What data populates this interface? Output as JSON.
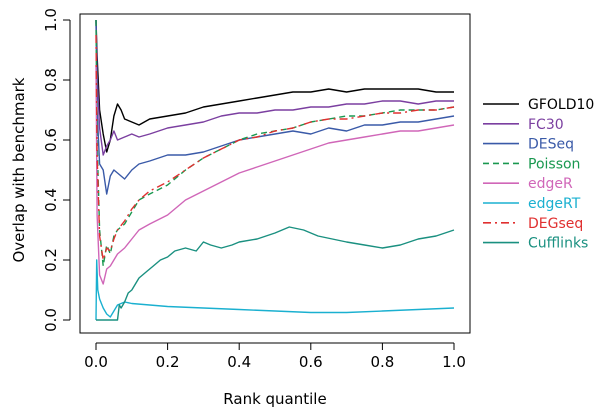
{
  "chart_data": {
    "type": "line",
    "title": "",
    "xlabel": "Rank quantile",
    "ylabel": "Overlap with benchmark",
    "xlim": [
      0,
      1
    ],
    "ylim": [
      0,
      1
    ],
    "x_ticks": [
      0.0,
      0.2,
      0.4,
      0.6,
      0.8,
      1.0
    ],
    "x_tick_labels": [
      "0.0",
      "0.2",
      "0.4",
      "0.6",
      "0.8",
      "1.0"
    ],
    "y_ticks": [
      0.0,
      0.2,
      0.4,
      0.6,
      0.8,
      1.0
    ],
    "y_tick_labels": [
      "0.0",
      "0.2",
      "0.4",
      "0.6",
      "0.8",
      "1.0"
    ],
    "grid": false,
    "legend_position": "right",
    "series": [
      {
        "name": "GFOLD10",
        "color": "#000000",
        "dash": "solid",
        "x": [
          0,
          0.003,
          0.01,
          0.02,
          0.03,
          0.04,
          0.05,
          0.06,
          0.07,
          0.08,
          0.1,
          0.12,
          0.15,
          0.2,
          0.25,
          0.3,
          0.35,
          0.4,
          0.45,
          0.5,
          0.55,
          0.6,
          0.65,
          0.7,
          0.75,
          0.8,
          0.85,
          0.9,
          0.95,
          1.0
        ],
        "y": [
          1.0,
          0.88,
          0.7,
          0.62,
          0.56,
          0.6,
          0.68,
          0.72,
          0.7,
          0.67,
          0.66,
          0.65,
          0.67,
          0.68,
          0.69,
          0.71,
          0.72,
          0.73,
          0.74,
          0.75,
          0.76,
          0.76,
          0.77,
          0.76,
          0.77,
          0.77,
          0.77,
          0.77,
          0.76,
          0.76
        ]
      },
      {
        "name": "FC30",
        "color": "#7b3fa0",
        "dash": "solid",
        "x": [
          0,
          0.003,
          0.01,
          0.02,
          0.03,
          0.04,
          0.05,
          0.06,
          0.08,
          0.1,
          0.12,
          0.15,
          0.2,
          0.25,
          0.3,
          0.35,
          0.4,
          0.45,
          0.5,
          0.55,
          0.6,
          0.65,
          0.7,
          0.75,
          0.8,
          0.85,
          0.9,
          0.95,
          1.0
        ],
        "y": [
          1.0,
          0.82,
          0.64,
          0.55,
          0.58,
          0.6,
          0.63,
          0.6,
          0.61,
          0.62,
          0.61,
          0.62,
          0.64,
          0.65,
          0.66,
          0.68,
          0.69,
          0.69,
          0.7,
          0.7,
          0.71,
          0.71,
          0.72,
          0.72,
          0.73,
          0.73,
          0.72,
          0.73,
          0.73
        ]
      },
      {
        "name": "DESeq",
        "color": "#3a5aa8",
        "dash": "solid",
        "x": [
          0,
          0.003,
          0.01,
          0.02,
          0.03,
          0.04,
          0.05,
          0.06,
          0.08,
          0.1,
          0.12,
          0.15,
          0.2,
          0.25,
          0.3,
          0.35,
          0.4,
          0.45,
          0.5,
          0.55,
          0.6,
          0.65,
          0.7,
          0.75,
          0.8,
          0.85,
          0.9,
          0.95,
          1.0
        ],
        "y": [
          1.0,
          0.7,
          0.52,
          0.5,
          0.42,
          0.48,
          0.5,
          0.49,
          0.47,
          0.5,
          0.52,
          0.53,
          0.55,
          0.55,
          0.56,
          0.58,
          0.6,
          0.61,
          0.62,
          0.63,
          0.62,
          0.64,
          0.63,
          0.65,
          0.65,
          0.66,
          0.66,
          0.67,
          0.68
        ]
      },
      {
        "name": "Poisson",
        "color": "#1a9850",
        "dash": "dash",
        "x": [
          0,
          0.003,
          0.01,
          0.02,
          0.03,
          0.04,
          0.05,
          0.06,
          0.08,
          0.1,
          0.12,
          0.15,
          0.2,
          0.25,
          0.3,
          0.35,
          0.4,
          0.45,
          0.5,
          0.55,
          0.6,
          0.65,
          0.7,
          0.75,
          0.8,
          0.85,
          0.9,
          0.95,
          1.0
        ],
        "y": [
          1.0,
          0.6,
          0.3,
          0.18,
          0.25,
          0.22,
          0.28,
          0.3,
          0.32,
          0.36,
          0.4,
          0.42,
          0.45,
          0.5,
          0.54,
          0.57,
          0.6,
          0.62,
          0.63,
          0.64,
          0.66,
          0.67,
          0.68,
          0.68,
          0.69,
          0.7,
          0.7,
          0.7,
          0.71
        ]
      },
      {
        "name": "edgeR",
        "color": "#d066b8",
        "dash": "solid",
        "x": [
          0,
          0.003,
          0.01,
          0.02,
          0.03,
          0.04,
          0.05,
          0.06,
          0.08,
          0.1,
          0.12,
          0.15,
          0.2,
          0.25,
          0.3,
          0.35,
          0.4,
          0.45,
          0.5,
          0.55,
          0.6,
          0.65,
          0.7,
          0.75,
          0.8,
          0.85,
          0.9,
          0.95,
          1.0
        ],
        "y": [
          0.85,
          0.35,
          0.15,
          0.12,
          0.17,
          0.18,
          0.2,
          0.22,
          0.24,
          0.27,
          0.3,
          0.32,
          0.35,
          0.4,
          0.43,
          0.46,
          0.49,
          0.51,
          0.53,
          0.55,
          0.57,
          0.59,
          0.6,
          0.61,
          0.62,
          0.63,
          0.63,
          0.64,
          0.65
        ]
      },
      {
        "name": "edgeRT",
        "color": "#1ab0d0",
        "dash": "solid",
        "x": [
          0,
          0.002,
          0.005,
          0.01,
          0.02,
          0.03,
          0.04,
          0.05,
          0.06,
          0.08,
          0.1,
          0.15,
          0.2,
          0.3,
          0.4,
          0.5,
          0.6,
          0.7,
          0.8,
          0.9,
          1.0
        ],
        "y": [
          0.0,
          0.2,
          0.1,
          0.07,
          0.04,
          0.02,
          0.01,
          0.03,
          0.05,
          0.06,
          0.055,
          0.05,
          0.045,
          0.04,
          0.035,
          0.03,
          0.025,
          0.025,
          0.03,
          0.035,
          0.04
        ]
      },
      {
        "name": "DEGseq",
        "color": "#e03030",
        "dash": "dashdot",
        "x": [
          0,
          0.003,
          0.01,
          0.02,
          0.03,
          0.04,
          0.05,
          0.06,
          0.08,
          0.1,
          0.12,
          0.15,
          0.2,
          0.25,
          0.3,
          0.35,
          0.4,
          0.45,
          0.5,
          0.55,
          0.6,
          0.65,
          0.7,
          0.75,
          0.8,
          0.85,
          0.9,
          0.95,
          1.0
        ],
        "y": [
          0.95,
          0.55,
          0.28,
          0.2,
          0.24,
          0.23,
          0.27,
          0.3,
          0.33,
          0.37,
          0.4,
          0.43,
          0.46,
          0.5,
          0.54,
          0.57,
          0.6,
          0.61,
          0.63,
          0.64,
          0.66,
          0.67,
          0.67,
          0.68,
          0.69,
          0.69,
          0.7,
          0.7,
          0.71
        ]
      },
      {
        "name": "Cufflinks",
        "color": "#1a9080",
        "dash": "solid",
        "x": [
          0,
          0.06,
          0.065,
          0.07,
          0.08,
          0.09,
          0.1,
          0.12,
          0.14,
          0.16,
          0.18,
          0.2,
          0.22,
          0.25,
          0.28,
          0.3,
          0.32,
          0.35,
          0.38,
          0.4,
          0.45,
          0.5,
          0.54,
          0.58,
          0.62,
          0.66,
          0.7,
          0.75,
          0.8,
          0.85,
          0.9,
          0.95,
          1.0
        ],
        "y": [
          0.0,
          0.0,
          0.05,
          0.04,
          0.06,
          0.09,
          0.1,
          0.14,
          0.16,
          0.18,
          0.2,
          0.21,
          0.23,
          0.24,
          0.23,
          0.26,
          0.25,
          0.24,
          0.25,
          0.26,
          0.27,
          0.29,
          0.31,
          0.3,
          0.28,
          0.27,
          0.26,
          0.25,
          0.24,
          0.25,
          0.27,
          0.28,
          0.3
        ]
      }
    ]
  }
}
